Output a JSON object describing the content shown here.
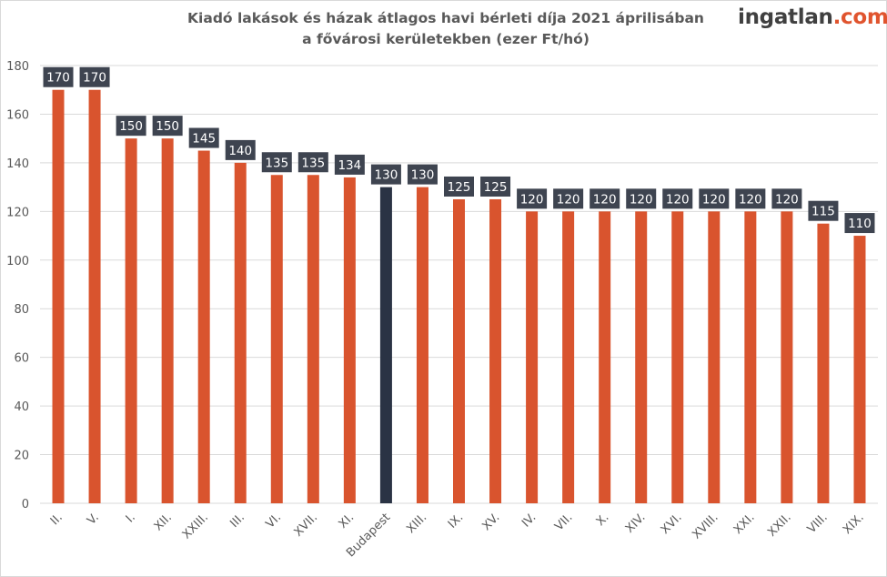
{
  "header": {
    "title_line1": "Kiadó lakások és házak átlagos havi bérleti díja 2021 áprilisában",
    "title_line2": "a fővárosi kerületekben (ezer Ft/hó)"
  },
  "logo": {
    "main": "ingatlan",
    "suffix": ".com"
  },
  "colors": {
    "bar": "#d9542e",
    "highlight_bar": "#2a3344",
    "label_bg": "#3e4450",
    "grid": "#d9d9d9",
    "text": "#595959"
  },
  "chart_data": {
    "type": "bar",
    "title": "Kiadó lakások és házak átlagos havi bérleti díja 2021 áprilisában a fővárosi kerületekben (ezer Ft/hó)",
    "xlabel": "",
    "ylabel": "",
    "ylim": [
      0,
      180
    ],
    "yticks": [
      0,
      20,
      40,
      60,
      80,
      100,
      120,
      140,
      160,
      180
    ],
    "grid": true,
    "highlight_category": "Budapest",
    "categories": [
      "II.",
      "V.",
      "I.",
      "XII.",
      "XXIII.",
      "III.",
      "VI.",
      "XVII.",
      "XI.",
      "Budapest",
      "XIII.",
      "IX.",
      "XV.",
      "IV.",
      "VII.",
      "X.",
      "XIV.",
      "XVI.",
      "XVIII.",
      "XXI.",
      "XXII.",
      "VIII.",
      "XIX."
    ],
    "values": [
      170,
      170,
      150,
      150,
      145,
      140,
      135,
      135,
      134,
      130,
      130,
      125,
      125,
      120,
      120,
      120,
      120,
      120,
      120,
      120,
      120,
      115,
      110
    ]
  }
}
